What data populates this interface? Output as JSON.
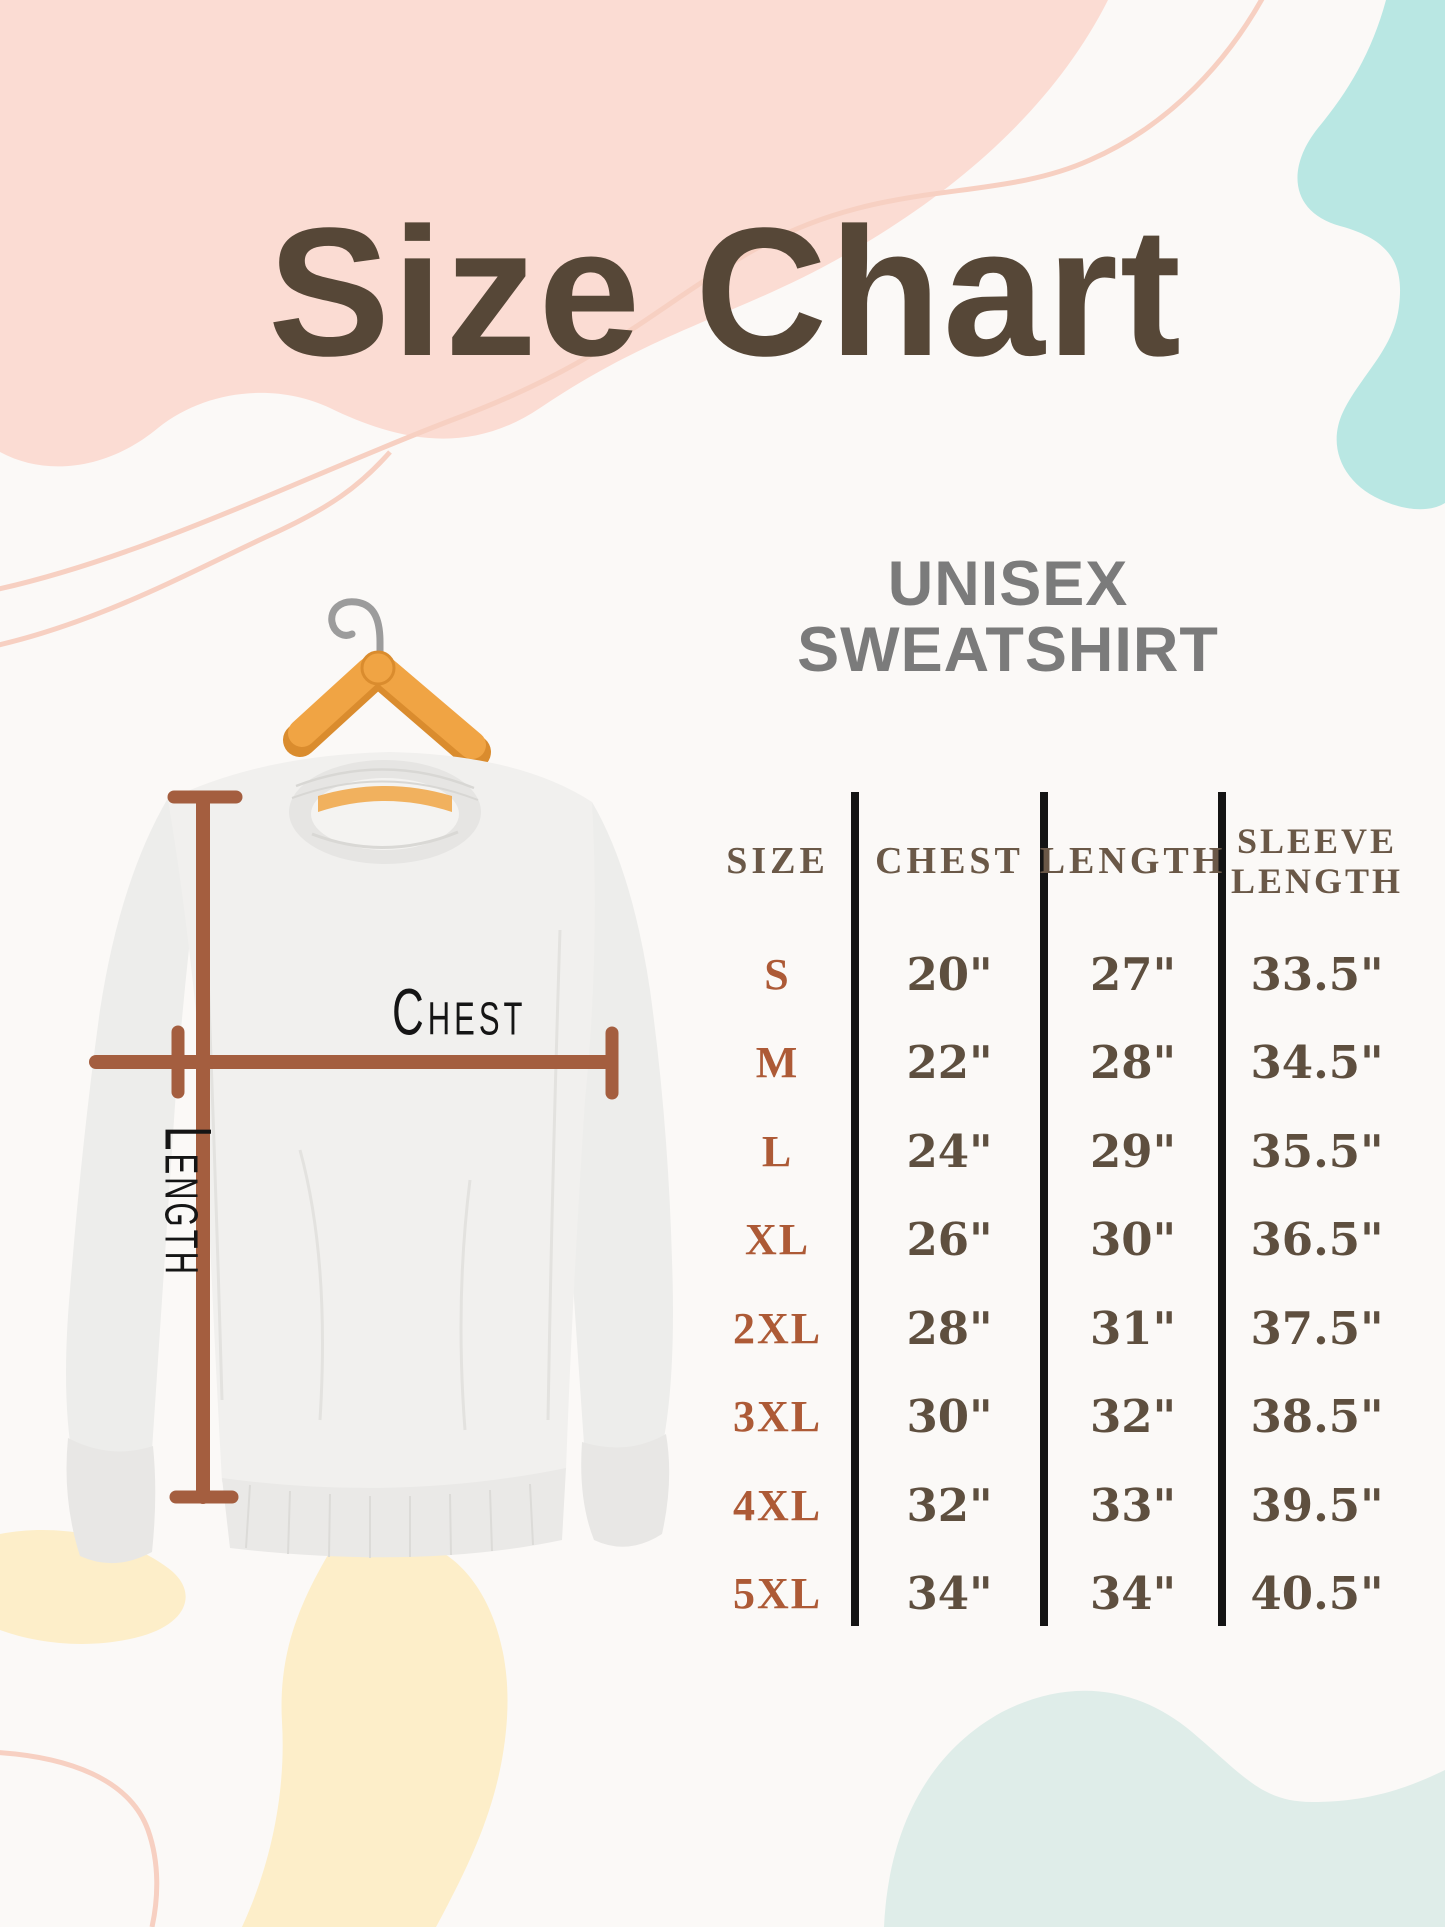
{
  "title": "Size Chart",
  "product": {
    "line1": "UNISEX",
    "line2": "SWEATSHIRT"
  },
  "diagram": {
    "chest_label": "Chest",
    "length_label": "Length"
  },
  "table": {
    "headers": {
      "size": "SIZE",
      "chest": "CHEST",
      "length": "LENGTH",
      "sleeve_line1": "SLEEVE",
      "sleeve_line2": "LENGTH"
    }
  },
  "chart_data": {
    "type": "table",
    "title": "Size Chart",
    "subtitle": "UNISEX SWEATSHIRT",
    "columns": [
      "SIZE",
      "CHEST",
      "LENGTH",
      "SLEEVE LENGTH"
    ],
    "rows": [
      [
        "S",
        "20\"",
        "27\"",
        "33.5\""
      ],
      [
        "M",
        "22\"",
        "28\"",
        "34.5\""
      ],
      [
        "L",
        "24\"",
        "29\"",
        "35.5\""
      ],
      [
        "XL",
        "26\"",
        "30\"",
        "36.5\""
      ],
      [
        "2XL",
        "28\"",
        "31\"",
        "37.5\""
      ],
      [
        "3XL",
        "30\"",
        "32\"",
        "38.5\""
      ],
      [
        "4XL",
        "32\"",
        "33\"",
        "39.5\""
      ],
      [
        "5XL",
        "34\"",
        "34\"",
        "40.5\""
      ]
    ]
  },
  "colors": {
    "background": "#fbf9f7",
    "title_brown": "#564737",
    "subtitle_gray": "#7b7b7b",
    "header_brown": "#6a5847",
    "value_brown": "#5e4f3f",
    "size_rust": "#ad5a36",
    "measure_line_rust": "#a45e3f",
    "divider_black": "#141414",
    "blob_pink": "#fbdcd3",
    "blob_pink_line": "#f7d0c2",
    "blob_cyan": "#b9e7e3",
    "blob_cream": "#fdeec9",
    "blob_mint": "#dfede9",
    "hanger_wood": "#f0a444"
  }
}
